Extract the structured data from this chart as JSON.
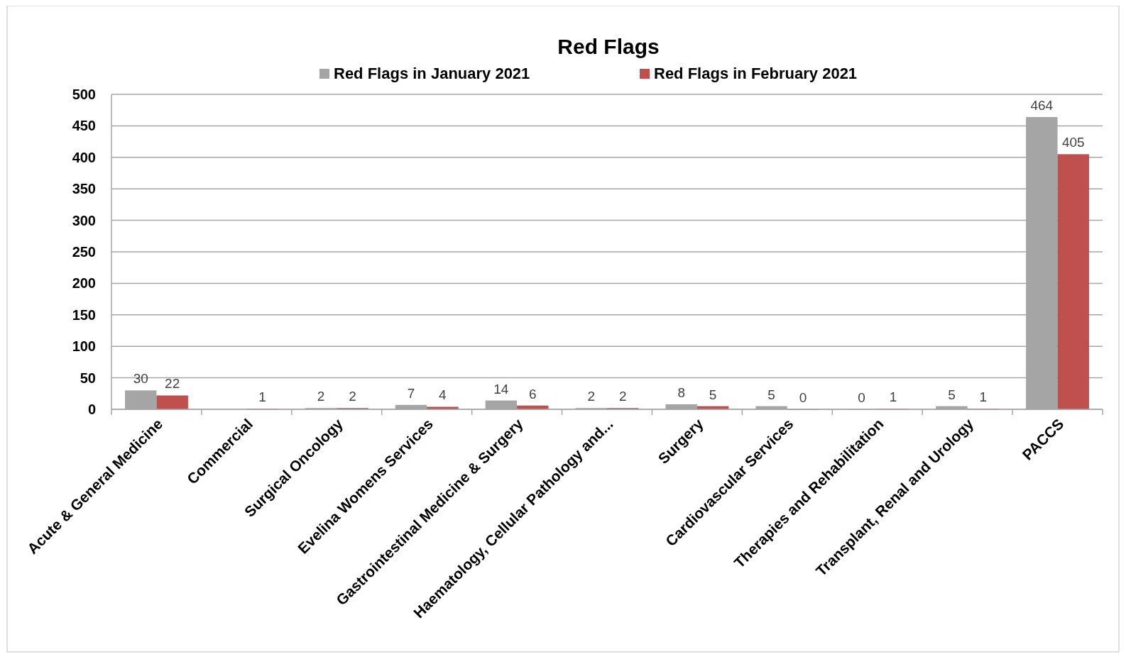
{
  "chart_data": {
    "type": "bar",
    "title": "Red Flags",
    "categories": [
      "Acute & General Medicine",
      "Commercial",
      "Surgical Oncology",
      "Evelina Womens Services",
      "Gastrointestinal Medicine & Surgery",
      "Haematology, Cellular Pathology and...",
      "Surgery",
      "Cardiovascular Services",
      "Therapies and Rehabilitation",
      "Transplant, Renal and Urology",
      "PACCS"
    ],
    "series": [
      {
        "name": "Red Flags in January 2021",
        "color": "#a5a5a5",
        "values": [
          30,
          null,
          2,
          7,
          14,
          2,
          8,
          5,
          0,
          5,
          464
        ]
      },
      {
        "name": "Red Flags in February 2021",
        "color": "#c0504d",
        "values": [
          22,
          1,
          2,
          4,
          6,
          2,
          5,
          0,
          1,
          1,
          405
        ]
      }
    ],
    "ylim": [
      0,
      500
    ],
    "yticks": [
      0,
      50,
      100,
      150,
      200,
      250,
      300,
      350,
      400,
      450,
      500
    ],
    "grid": "y",
    "legend": "top",
    "data_labels": true
  }
}
